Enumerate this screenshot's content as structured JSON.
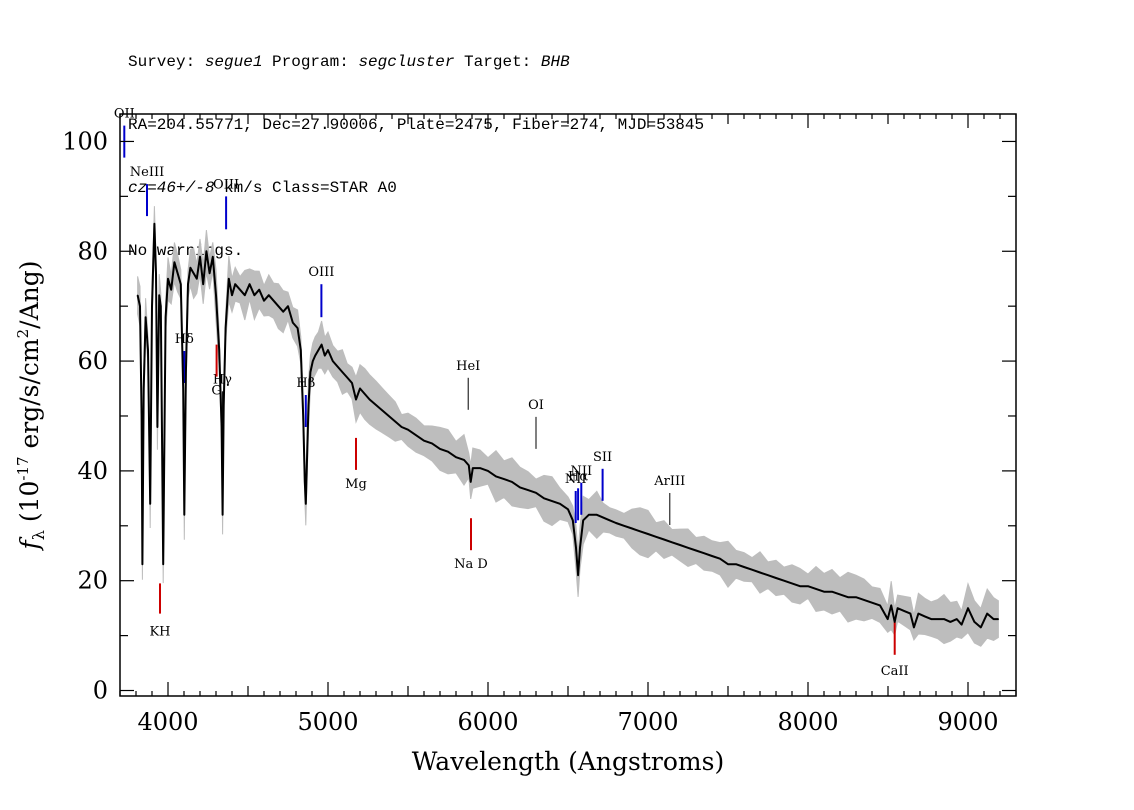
{
  "header": {
    "line1": {
      "survey_label": "Survey: ",
      "survey": "segue1",
      "program_label": " Program: ",
      "program": "segcluster",
      "target_label": " Target: ",
      "target": "BHB"
    },
    "line2": "RA=204.55771, Dec=27.90006, Plate=2475, Fiber=274, MJD=53845",
    "line3": {
      "cz": "cz=46+/-8",
      "rest": " km/s Class=STAR A0"
    },
    "line4": "No warnings."
  },
  "chart_data": {
    "type": "line",
    "xlabel": "Wavelength (Angstroms)",
    "ylabel": "f_λ (10^-17 erg/s/cm^2/Ang)",
    "xlim": [
      3700,
      9300
    ],
    "ylim": [
      -1,
      105
    ],
    "xticks": [
      4000,
      5000,
      6000,
      7000,
      8000,
      9000
    ],
    "yticks": [
      0,
      20,
      40,
      60,
      80,
      100
    ],
    "grid": false,
    "colors": {
      "flux": "#000000",
      "noise": "#bdbdbd",
      "emission": "#0000cc",
      "absorption": "#cc0000",
      "sky": "#000000"
    },
    "series": [
      {
        "kind": "flux",
        "points": [
          [
            3810,
            72
          ],
          [
            3825,
            70
          ],
          [
            3835,
            50
          ],
          [
            3840,
            23
          ],
          [
            3848,
            55
          ],
          [
            3860,
            68
          ],
          [
            3875,
            62
          ],
          [
            3889,
            34
          ],
          [
            3900,
            70
          ],
          [
            3915,
            85
          ],
          [
            3925,
            76
          ],
          [
            3934,
            48
          ],
          [
            3945,
            72
          ],
          [
            3955,
            70
          ],
          [
            3970,
            23
          ],
          [
            3985,
            68
          ],
          [
            4000,
            75
          ],
          [
            4020,
            73
          ],
          [
            4040,
            78
          ],
          [
            4060,
            76
          ],
          [
            4080,
            74
          ],
          [
            4095,
            55
          ],
          [
            4102,
            32
          ],
          [
            4112,
            58
          ],
          [
            4125,
            74
          ],
          [
            4140,
            77
          ],
          [
            4160,
            76
          ],
          [
            4180,
            75
          ],
          [
            4200,
            79
          ],
          [
            4220,
            74
          ],
          [
            4240,
            80
          ],
          [
            4260,
            76
          ],
          [
            4280,
            79
          ],
          [
            4300,
            72
          ],
          [
            4320,
            62
          ],
          [
            4335,
            48
          ],
          [
            4341,
            32
          ],
          [
            4348,
            52
          ],
          [
            4360,
            66
          ],
          [
            4380,
            75
          ],
          [
            4400,
            72
          ],
          [
            4420,
            74
          ],
          [
            4450,
            73
          ],
          [
            4480,
            72
          ],
          [
            4510,
            74
          ],
          [
            4540,
            72
          ],
          [
            4570,
            73
          ],
          [
            4600,
            71
          ],
          [
            4630,
            72
          ],
          [
            4660,
            71
          ],
          [
            4690,
            70
          ],
          [
            4720,
            69
          ],
          [
            4750,
            70
          ],
          [
            4780,
            67
          ],
          [
            4810,
            66
          ],
          [
            4830,
            62
          ],
          [
            4845,
            50
          ],
          [
            4855,
            38
          ],
          [
            4861,
            34
          ],
          [
            4867,
            40
          ],
          [
            4878,
            52
          ],
          [
            4890,
            58
          ],
          [
            4905,
            60
          ],
          [
            4920,
            61
          ],
          [
            4940,
            62
          ],
          [
            4960,
            63
          ],
          [
            4980,
            61
          ],
          [
            5000,
            62
          ],
          [
            5030,
            60
          ],
          [
            5060,
            59
          ],
          [
            5090,
            58
          ],
          [
            5120,
            57
          ],
          [
            5150,
            56
          ],
          [
            5175,
            53
          ],
          [
            5200,
            55
          ],
          [
            5230,
            54
          ],
          [
            5260,
            53
          ],
          [
            5300,
            52
          ],
          [
            5340,
            51
          ],
          [
            5380,
            50
          ],
          [
            5420,
            49
          ],
          [
            5460,
            48
          ],
          [
            5500,
            47.5
          ],
          [
            5550,
            46.5
          ],
          [
            5600,
            45.5
          ],
          [
            5650,
            45
          ],
          [
            5700,
            44
          ],
          [
            5750,
            43.5
          ],
          [
            5800,
            42.5
          ],
          [
            5850,
            42
          ],
          [
            5880,
            41
          ],
          [
            5892,
            38
          ],
          [
            5905,
            40.5
          ],
          [
            5950,
            40.5
          ],
          [
            6000,
            40
          ],
          [
            6050,
            39
          ],
          [
            6100,
            38.5
          ],
          [
            6150,
            38
          ],
          [
            6200,
            37
          ],
          [
            6250,
            36.5
          ],
          [
            6300,
            36
          ],
          [
            6350,
            35
          ],
          [
            6400,
            34.5
          ],
          [
            6450,
            34
          ],
          [
            6500,
            33
          ],
          [
            6530,
            31
          ],
          [
            6550,
            26
          ],
          [
            6563,
            21
          ],
          [
            6575,
            26
          ],
          [
            6595,
            31
          ],
          [
            6630,
            32
          ],
          [
            6680,
            32
          ],
          [
            6720,
            31.5
          ],
          [
            6760,
            31
          ],
          [
            6800,
            30.5
          ],
          [
            6850,
            30
          ],
          [
            6900,
            29.5
          ],
          [
            6950,
            29
          ],
          [
            7000,
            28.5
          ],
          [
            7050,
            28
          ],
          [
            7100,
            27.5
          ],
          [
            7150,
            27
          ],
          [
            7200,
            26.5
          ],
          [
            7250,
            26
          ],
          [
            7300,
            25.5
          ],
          [
            7350,
            25
          ],
          [
            7400,
            24.5
          ],
          [
            7450,
            24
          ],
          [
            7500,
            23
          ],
          [
            7550,
            23
          ],
          [
            7600,
            22.5
          ],
          [
            7650,
            22
          ],
          [
            7700,
            21.5
          ],
          [
            7750,
            21
          ],
          [
            7800,
            20.5
          ],
          [
            7850,
            20
          ],
          [
            7900,
            19.5
          ],
          [
            7950,
            19
          ],
          [
            8000,
            19
          ],
          [
            8050,
            18.5
          ],
          [
            8100,
            18
          ],
          [
            8150,
            18
          ],
          [
            8200,
            17.5
          ],
          [
            8250,
            17
          ],
          [
            8300,
            17
          ],
          [
            8350,
            16.5
          ],
          [
            8400,
            16
          ],
          [
            8450,
            15.5
          ],
          [
            8498,
            13
          ],
          [
            8520,
            15.5
          ],
          [
            8542,
            12.5
          ],
          [
            8560,
            15
          ],
          [
            8600,
            14.5
          ],
          [
            8640,
            14
          ],
          [
            8662,
            11.5
          ],
          [
            8690,
            14
          ],
          [
            8730,
            13.5
          ],
          [
            8770,
            13
          ],
          [
            8810,
            13
          ],
          [
            8850,
            13
          ],
          [
            8890,
            12.5
          ],
          [
            8930,
            13
          ],
          [
            8960,
            12
          ],
          [
            9000,
            15
          ],
          [
            9040,
            12.5
          ],
          [
            9080,
            11.5
          ],
          [
            9120,
            14
          ],
          [
            9160,
            13
          ],
          [
            9190,
            13
          ]
        ]
      }
    ],
    "line_labels": [
      {
        "label": "NeIII",
        "x": 3869,
        "kind": "emission"
      },
      {
        "label": "OII",
        "x": 3727,
        "kind": "emission"
      },
      {
        "label": "Hδ",
        "x": 4102,
        "kind": "emission"
      },
      {
        "label": "Hγ",
        "x": 4340,
        "kind": "sky"
      },
      {
        "label": "OIII",
        "x": 4363,
        "kind": "emission"
      },
      {
        "label": "Hβ",
        "x": 4861,
        "kind": "emission"
      },
      {
        "label": "OIII",
        "x": 4959,
        "kind": "emission"
      },
      {
        "label": "HeI",
        "x": 5876,
        "kind": "sky"
      },
      {
        "label": "OI",
        "x": 6300,
        "kind": "sky"
      },
      {
        "label": "NII",
        "x": 6548,
        "kind": "emission"
      },
      {
        "label": "Hα",
        "x": 6563,
        "kind": "emission"
      },
      {
        "label": "NII",
        "x": 6583,
        "kind": "emission"
      },
      {
        "label": "SII",
        "x": 6716,
        "kind": "emission"
      },
      {
        "label": "ArIII",
        "x": 7136,
        "kind": "sky"
      },
      {
        "label": "KH",
        "x": 3950,
        "kind": "absorption"
      },
      {
        "label": "G",
        "x": 4304,
        "kind": "absorption"
      },
      {
        "label": "Mg",
        "x": 5175,
        "kind": "absorption"
      },
      {
        "label": "Na D",
        "x": 5894,
        "kind": "absorption"
      },
      {
        "label": "CaII",
        "x": 8542,
        "kind": "absorption"
      }
    ]
  }
}
